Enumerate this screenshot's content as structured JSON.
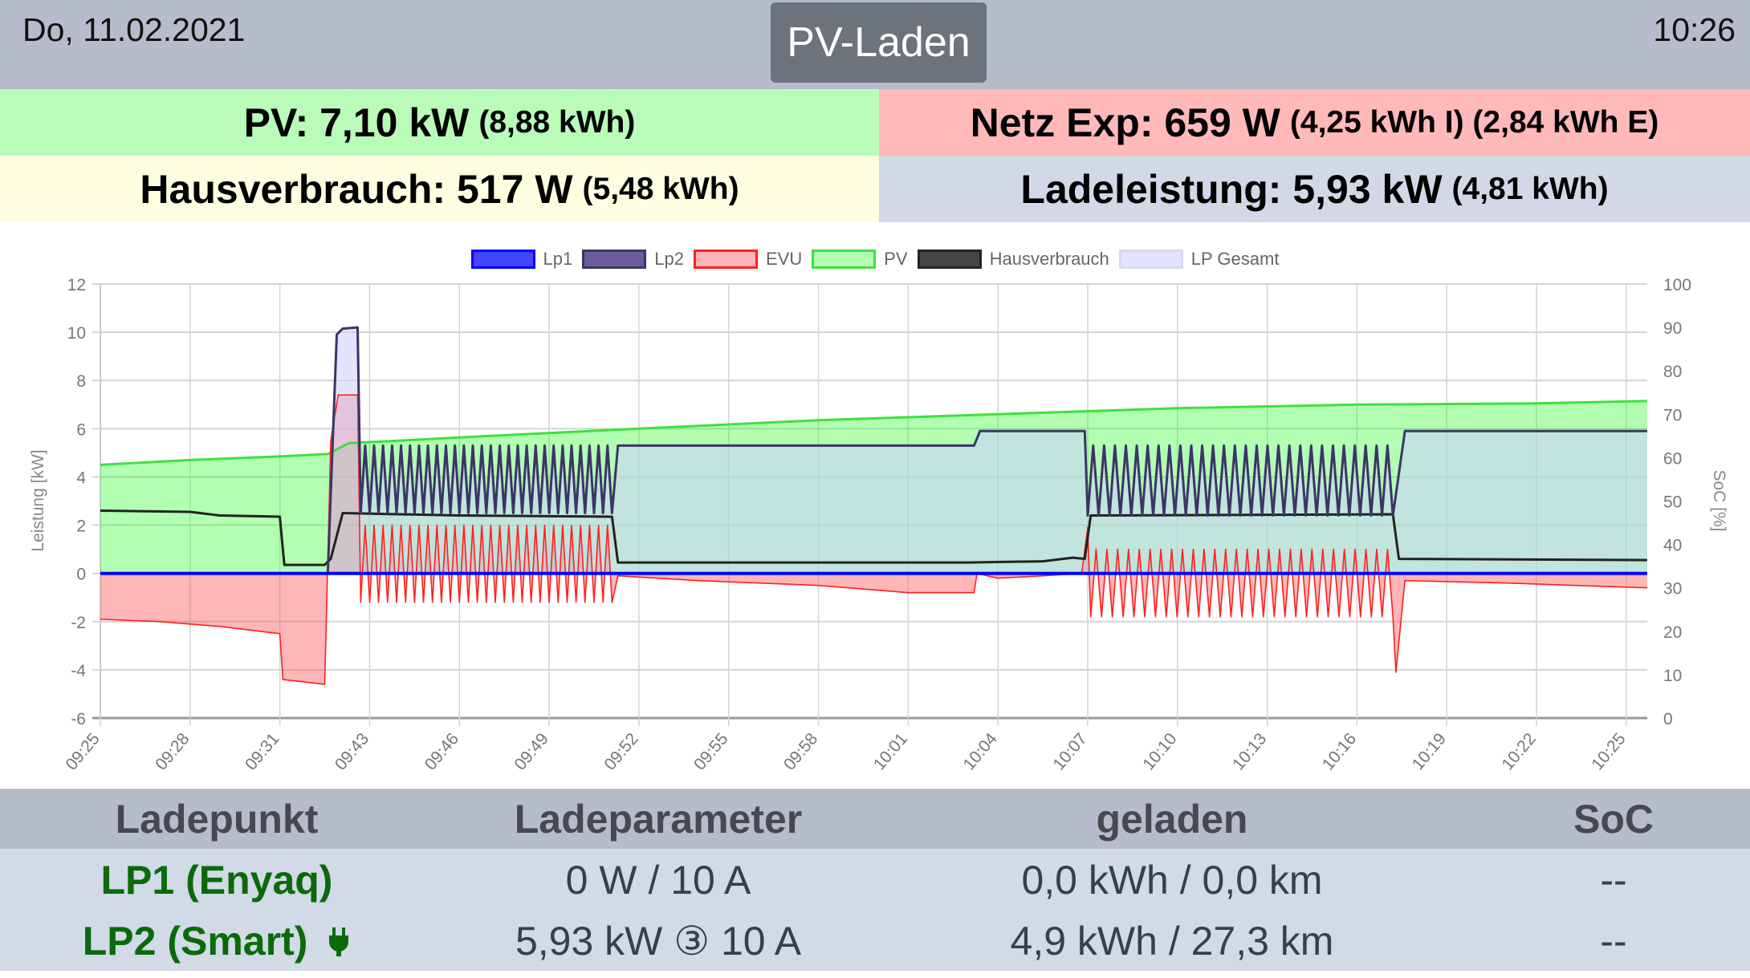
{
  "header": {
    "date": "Do, 11.02.2021",
    "time": "10:26",
    "mode_button": "PV-Laden"
  },
  "summary": {
    "pv": {
      "main": "PV: 7,10 kW",
      "sub": "(8,88 kWh)"
    },
    "netz": {
      "main": "Netz Exp: 659 W",
      "sub": "(4,25 kWh I) (2,84 kWh E)"
    },
    "haus": {
      "main": "Hausverbrauch: 517 W",
      "sub": "(5,48 kWh)"
    },
    "lade": {
      "main": "Ladeleistung: 5,93 kW",
      "sub": "(4,81 kWh)"
    }
  },
  "table": {
    "headers": [
      "Ladepunkt",
      "Ladeparameter",
      "geladen",
      "SoC"
    ],
    "rows": [
      {
        "name": "LP1 (Enyaq)",
        "param": "0 W / 10 A",
        "charged": "0,0 kWh / 0,0 km",
        "soc": "--",
        "plugged": false
      },
      {
        "name": "LP2 (Smart)",
        "param": "5,93 kW ③ 10 A",
        "charged": "4,9 kWh / 27,3 km",
        "soc": "--",
        "plugged": true
      }
    ]
  },
  "chart_data": {
    "type": "line",
    "title": "",
    "ylabel": "Leistung [kW]",
    "y2label": "SoC [%]",
    "ylim": [
      -6,
      12
    ],
    "y_ticks": [
      12,
      10,
      8,
      6,
      4,
      2,
      0,
      -2,
      -4,
      -6
    ],
    "y2lim": [
      0,
      100
    ],
    "y2_ticks": [
      100,
      90,
      80,
      70,
      60,
      50,
      40,
      30,
      20,
      10,
      0
    ],
    "x_labels": [
      "09:25",
      "09:28",
      "09:31",
      "09:43",
      "09:46",
      "09:49",
      "09:52",
      "09:55",
      "09:58",
      "10:01",
      "10:04",
      "10:07",
      "10:10",
      "10:13",
      "10:16",
      "10:19",
      "10:22",
      "10:25"
    ],
    "x_label_step": 3,
    "x_max": 51.7,
    "grid": true,
    "legend_position": "top",
    "series": [
      {
        "name": "Lp1",
        "color": "#0000ff",
        "fill": "#4444ff",
        "points": [
          [
            0,
            0
          ],
          [
            51.7,
            0
          ]
        ],
        "oscillations": [],
        "filled": false
      },
      {
        "name": "Lp2",
        "color": "#3b3566",
        "fill": "#6c5d9a",
        "points": [
          [
            0,
            0
          ],
          [
            7.6,
            0
          ],
          [
            7.9,
            9.9
          ],
          [
            8.1,
            10.15
          ],
          [
            8.6,
            10.2
          ],
          [
            8.7,
            2.5
          ],
          [
            17.1,
            2.5
          ],
          [
            17.3,
            5.3
          ],
          [
            29.2,
            5.3
          ],
          [
            29.4,
            5.9
          ],
          [
            32.9,
            5.9
          ],
          [
            33.0,
            2.4
          ],
          [
            43.2,
            2.4
          ],
          [
            43.6,
            5.9
          ],
          [
            51.7,
            5.9
          ]
        ],
        "oscillations": [
          {
            "from": 8.7,
            "to": 17.1,
            "low": 2.5,
            "high": 5.3,
            "cycles": 28
          },
          {
            "from": 33.0,
            "to": 43.2,
            "low": 2.4,
            "high": 5.3,
            "cycles": 28
          }
        ],
        "filled": false
      },
      {
        "name": "EVU",
        "color": "#ff2020",
        "fill": "rgba(255,80,80,0.42)",
        "points": [
          [
            0,
            -1.9
          ],
          [
            2,
            -2.0
          ],
          [
            4,
            -2.2
          ],
          [
            6,
            -2.5
          ],
          [
            6.1,
            -4.4
          ],
          [
            7.5,
            -4.6
          ],
          [
            7.7,
            5.5
          ],
          [
            7.95,
            7.4
          ],
          [
            8.6,
            7.4
          ],
          [
            8.7,
            -1.1
          ],
          [
            17.1,
            -1.2
          ],
          [
            17.3,
            -0.1
          ],
          [
            20,
            -0.3
          ],
          [
            24,
            -0.5
          ],
          [
            27,
            -0.8
          ],
          [
            29.2,
            -0.8
          ],
          [
            29.3,
            0
          ],
          [
            30,
            -0.2
          ],
          [
            31.5,
            -0.1
          ],
          [
            32.8,
            0
          ],
          [
            33.0,
            1.9
          ],
          [
            33.1,
            -1.7
          ],
          [
            43.2,
            -1.8
          ],
          [
            43.3,
            -4.1
          ],
          [
            43.6,
            -0.3
          ],
          [
            47,
            -0.4
          ],
          [
            51.7,
            -0.6
          ]
        ],
        "oscillations": [
          {
            "from": 8.7,
            "to": 17.1,
            "low": -1.2,
            "high": 2.0,
            "cycles": 28
          },
          {
            "from": 33.1,
            "to": 43.2,
            "low": -1.8,
            "high": 1.0,
            "cycles": 28
          }
        ],
        "filled": true
      },
      {
        "name": "PV",
        "color": "#3fe03f",
        "fill": "rgba(0,255,0,0.3)",
        "points": [
          [
            0,
            4.5
          ],
          [
            3,
            4.7
          ],
          [
            6,
            4.85
          ],
          [
            7.6,
            4.95
          ],
          [
            8.3,
            5.4
          ],
          [
            13,
            5.7
          ],
          [
            18,
            6.0
          ],
          [
            24,
            6.35
          ],
          [
            30,
            6.6
          ],
          [
            36,
            6.85
          ],
          [
            42,
            7.0
          ],
          [
            48,
            7.05
          ],
          [
            51.7,
            7.15
          ]
        ],
        "oscillations": [],
        "filled": true
      },
      {
        "name": "Hausverbrauch",
        "color": "#222222",
        "fill": "#444444",
        "points": [
          [
            0,
            2.6
          ],
          [
            3,
            2.55
          ],
          [
            4,
            2.4
          ],
          [
            6,
            2.35
          ],
          [
            6.15,
            0.35
          ],
          [
            7.5,
            0.35
          ],
          [
            7.7,
            0.6
          ],
          [
            8.1,
            2.5
          ],
          [
            12,
            2.4
          ],
          [
            17.1,
            2.35
          ],
          [
            17.3,
            0.45
          ],
          [
            24,
            0.45
          ],
          [
            29,
            0.45
          ],
          [
            31.5,
            0.5
          ],
          [
            32.5,
            0.65
          ],
          [
            32.9,
            0.6
          ],
          [
            33.1,
            2.4
          ],
          [
            43.2,
            2.45
          ],
          [
            43.4,
            0.6
          ],
          [
            51.7,
            0.55
          ]
        ],
        "oscillations": [],
        "filled": false
      },
      {
        "name": "LP Gesamt",
        "color": "#d8d8f5",
        "fill": "rgba(205,205,255,0.55)",
        "points": [
          [
            0,
            0
          ],
          [
            7.6,
            0
          ],
          [
            7.9,
            9.9
          ],
          [
            8.1,
            10.15
          ],
          [
            8.6,
            10.2
          ],
          [
            8.7,
            2.5
          ],
          [
            17.1,
            2.5
          ],
          [
            17.3,
            5.3
          ],
          [
            29.2,
            5.3
          ],
          [
            29.4,
            5.9
          ],
          [
            32.9,
            5.9
          ],
          [
            33.0,
            2.4
          ],
          [
            43.2,
            2.4
          ],
          [
            43.6,
            5.9
          ],
          [
            51.7,
            5.9
          ]
        ],
        "oscillations": [
          {
            "from": 8.7,
            "to": 17.1,
            "low": 2.5,
            "high": 5.3,
            "cycles": 28
          },
          {
            "from": 33.0,
            "to": 43.2,
            "low": 2.4,
            "high": 5.3,
            "cycles": 28
          }
        ],
        "filled": true
      }
    ]
  }
}
